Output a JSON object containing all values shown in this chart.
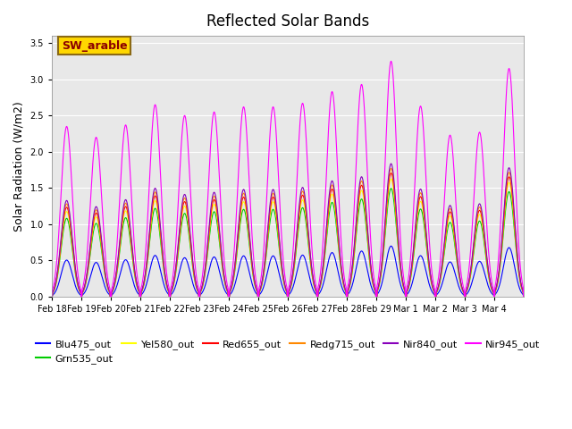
{
  "title": "Reflected Solar Bands",
  "ylabel": "Solar Radiation (W/m2)",
  "annotation": "SW_arable",
  "annotation_color": "#8B0000",
  "annotation_bg": "#FFD700",
  "background_color": "#E8E8E8",
  "ylim": [
    0,
    3.6
  ],
  "yticks": [
    0.0,
    0.5,
    1.0,
    1.5,
    2.0,
    2.5,
    3.0,
    3.5
  ],
  "series": [
    {
      "label": "Blu475_out",
      "color": "#0000FF"
    },
    {
      "label": "Grn535_out",
      "color": "#00CC00"
    },
    {
      "label": "Yel580_out",
      "color": "#FFFF00"
    },
    {
      "label": "Red655_out",
      "color": "#FF0000"
    },
    {
      "label": "Redg715_out",
      "color": "#FF8800"
    },
    {
      "label": "Nir840_out",
      "color": "#8800BB"
    },
    {
      "label": "Nir945_out",
      "color": "#FF00FF"
    }
  ],
  "date_labels": [
    "Feb 18",
    "Feb 19",
    "Feb 20",
    "Feb 21",
    "Feb 22",
    "Feb 23",
    "Feb 24",
    "Feb 25",
    "Feb 26",
    "Feb 27",
    "Feb 28",
    "Feb 29",
    "Mar 1",
    "Mar 2",
    "Mar 3",
    "Mar 4"
  ],
  "n_days": 16,
  "pts_per_day": 96,
  "day_peaks_nir945": [
    2.35,
    2.2,
    2.37,
    2.65,
    2.5,
    2.55,
    2.62,
    2.62,
    2.67,
    2.83,
    2.93,
    3.25,
    2.63,
    2.23,
    2.27,
    3.15
  ],
  "scale_factors": {
    "Blu475_out": 0.215,
    "Grn535_out": 0.46,
    "Yel580_out": 0.5,
    "Red655_out": 0.525,
    "Redg715_out": 0.545,
    "Nir840_out": 0.565,
    "Nir945_out": 1.0
  }
}
